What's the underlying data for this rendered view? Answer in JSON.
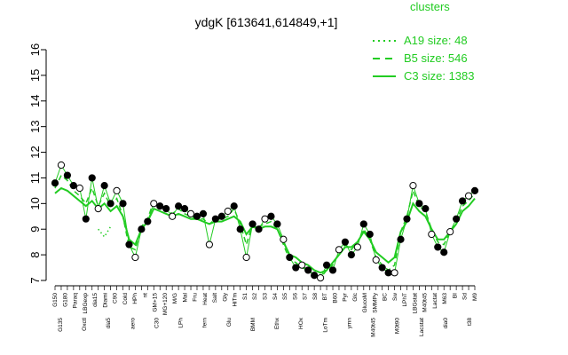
{
  "chart_data": {
    "type": "line",
    "title": "ydgK [613641,614849,+1]",
    "xlabel": "",
    "ylabel": "",
    "ylim": [
      7,
      16
    ],
    "yticks": [
      7,
      8,
      9,
      10,
      11,
      12,
      13,
      14,
      15,
      16
    ],
    "legend": {
      "title": "clusters",
      "position": "top-right",
      "entries": [
        {
          "label": "A19 size: 48",
          "style": "dotted"
        },
        {
          "label": "B5 size: 546",
          "style": "dashed"
        },
        {
          "label": "C3 size: 1383",
          "style": "solid"
        }
      ]
    },
    "x_tick_labels": [
      "G150",
      "G180",
      "Paraq",
      "LBGexp",
      "dia15",
      "Diami",
      "C90",
      "Cold",
      "HPh",
      "nt",
      "GM+15",
      "MG+120",
      "M/G",
      "Mal",
      "Fru",
      "Heat",
      "Salt",
      "Gly",
      "HiTm",
      "S1",
      "S2",
      "S3",
      "S4",
      "S5",
      "S6",
      "S7",
      "S8",
      "BT",
      "B60",
      "Pyr",
      "Glc",
      "GlucoM",
      "SMMPy",
      "BC",
      "Sw",
      "LPhT",
      "LBGstat",
      "M40t45",
      "Lactat",
      "M63",
      "BI",
      "Sd",
      "M9"
    ],
    "top_tick_labels": [
      "G135",
      "Oxctl",
      "dia5",
      "aero",
      "C30",
      "LPh",
      "fern",
      "Glu",
      "BMM",
      "Ethx",
      "HOx",
      "LoTm",
      "ymn",
      "M40t45",
      "M0t90",
      "Lacstat",
      "dia0",
      "t38"
    ],
    "series": [
      {
        "values": [
          10.8,
          11.5,
          11.1,
          10.7,
          10.6,
          9.4,
          11.0,
          9.8,
          10.7,
          10.0,
          10.5,
          10.0,
          8.4,
          7.9,
          9.0,
          9.3,
          10.0,
          9.9,
          9.8,
          9.5,
          9.9,
          9.8,
          9.6,
          9.5,
          9.6,
          8.4,
          9.4,
          9.5,
          9.7,
          9.9,
          9.0,
          7.9,
          9.2,
          9.0,
          9.4,
          9.5,
          9.2,
          8.6,
          7.9,
          7.5,
          7.6,
          7.4,
          7.2,
          7.1,
          7.6,
          7.4,
          8.2,
          8.5,
          8.0,
          8.3,
          9.2,
          8.8,
          7.8,
          7.5,
          7.3,
          7.3,
          8.6,
          9.4,
          10.7,
          10.0,
          9.8,
          8.8,
          8.3,
          8.1,
          8.9,
          9.4,
          10.1,
          10.3,
          10.5
        ]
      },
      {
        "values": [
          10.6,
          11.1,
          10.9,
          10.5,
          10.3,
          10.0,
          10.6,
          9.9,
          10.4,
          9.9,
          10.2,
          9.5,
          8.3,
          8.2,
          9.1,
          9.4,
          10.1,
          9.8,
          9.8,
          9.6,
          9.8,
          9.6,
          9.5,
          9.4,
          9.4,
          9.2,
          9.4,
          9.4,
          9.5,
          9.8,
          9.2,
          8.4,
          9.2,
          9.1,
          9.2,
          9.3,
          9.0,
          8.4,
          7.8,
          7.7,
          7.5,
          7.4,
          7.2,
          7.1,
          7.4,
          7.6,
          8.1,
          8.4,
          8.2,
          8.5,
          9.0,
          8.6,
          7.9,
          7.6,
          7.4,
          7.6,
          8.9,
          9.5,
          10.5,
          9.9,
          9.7,
          9.0,
          8.5,
          8.4,
          8.9,
          9.3,
          9.9,
          10.1,
          10.4
        ]
      },
      {
        "values": [
          10.4,
          10.6,
          10.5,
          10.3,
          10.1,
          9.9,
          10.1,
          9.8,
          10.0,
          9.7,
          9.9,
          9.5,
          8.6,
          8.4,
          9.0,
          9.3,
          9.8,
          9.7,
          9.6,
          9.5,
          9.6,
          9.5,
          9.4,
          9.4,
          9.3,
          9.2,
          9.3,
          9.3,
          9.4,
          9.5,
          9.3,
          8.8,
          9.1,
          9.0,
          9.1,
          9.1,
          9.0,
          8.5,
          8.0,
          7.9,
          7.7,
          7.6,
          7.4,
          7.3,
          7.4,
          7.7,
          8.0,
          8.3,
          8.3,
          8.5,
          8.9,
          8.6,
          8.1,
          7.9,
          7.7,
          7.9,
          8.9,
          9.3,
          10.0,
          9.7,
          9.5,
          9.0,
          8.6,
          8.6,
          8.9,
          9.2,
          9.7,
          9.9,
          10.2
        ]
      },
      {
        "values": [
          null,
          null,
          null,
          null,
          null,
          null,
          null,
          9.0,
          8.7,
          9.1,
          null,
          null,
          null,
          null,
          null,
          null,
          null,
          null,
          null,
          null,
          null,
          null,
          null,
          null,
          null,
          null,
          null,
          null,
          null,
          null,
          null,
          null,
          null,
          null,
          null,
          null,
          null,
          null,
          null,
          null,
          null,
          null,
          null,
          null,
          null,
          null,
          null,
          null,
          null,
          null,
          null,
          null,
          null,
          null,
          null,
          null,
          null,
          null,
          null,
          null,
          null,
          null,
          null,
          null,
          null,
          null,
          null,
          null,
          null
        ]
      }
    ]
  },
  "colors": {
    "line": "#22cc22",
    "point_fill": "#000000",
    "point_open": "#ffffff",
    "axis": "#000000",
    "legend": "#22cc22"
  }
}
